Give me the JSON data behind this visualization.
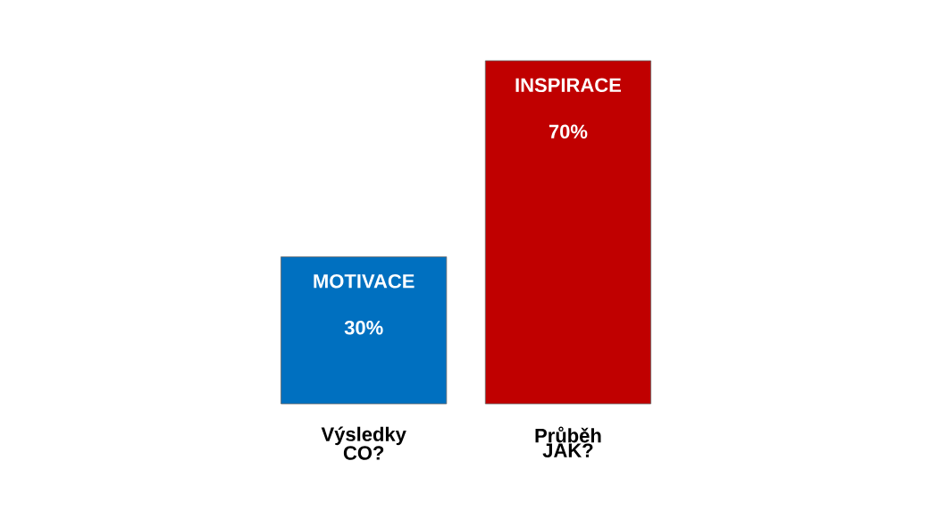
{
  "chart_data": {
    "type": "bar",
    "categories": [
      "Výsledky CO?",
      "Průběh JAK?"
    ],
    "values": [
      30,
      70
    ],
    "colors": [
      "#0070c0",
      "#c00000"
    ],
    "value_labels": [
      "30%",
      "70%"
    ],
    "annotations": [
      "MOTIVACE",
      "INSPIRACE"
    ]
  }
}
